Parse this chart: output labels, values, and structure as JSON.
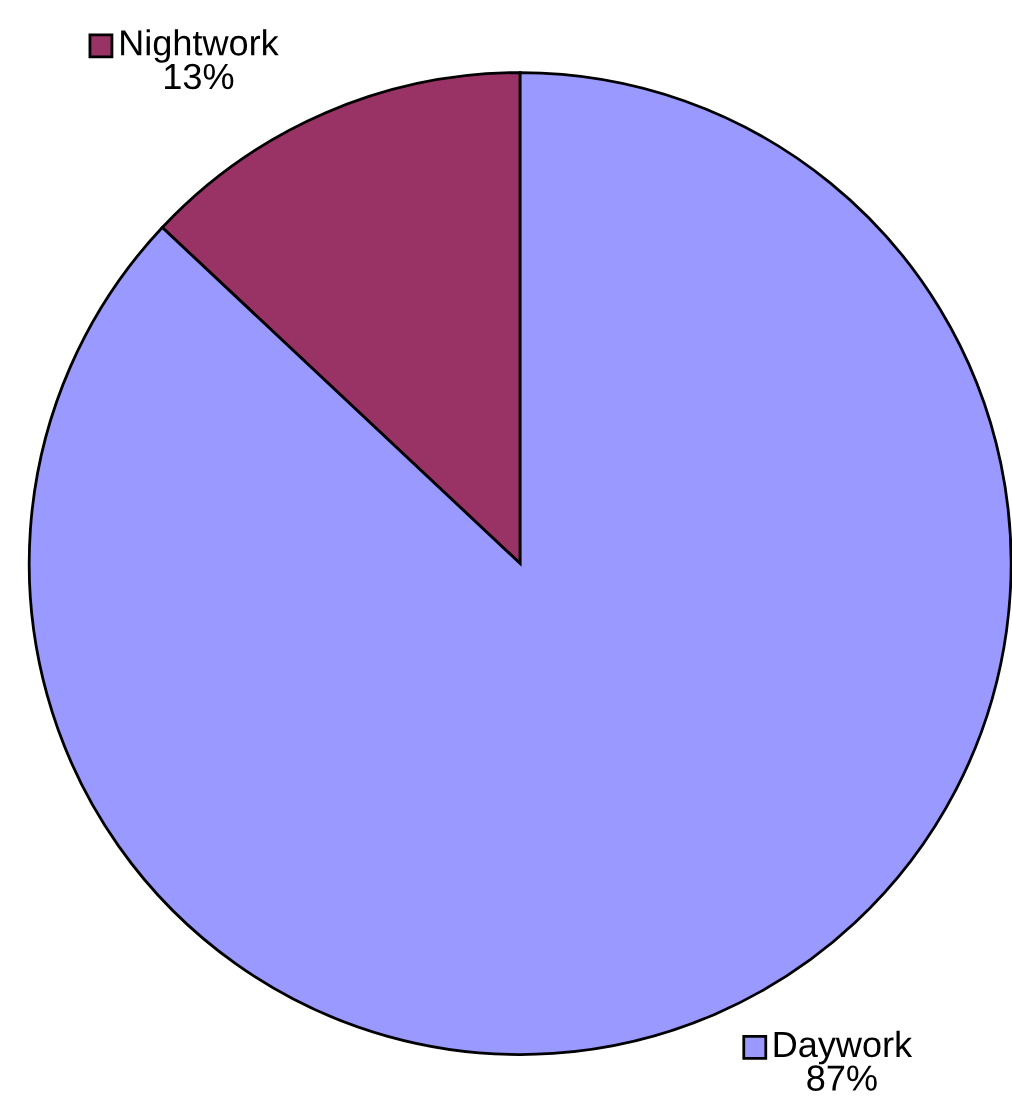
{
  "chart_data": {
    "type": "pie",
    "categories": [
      "Nightwork",
      "Daywork"
    ],
    "values": [
      13,
      87
    ],
    "value_labels": [
      "13%",
      "87%"
    ],
    "legend": "top left",
    "colors": [
      "#993366",
      "#9999ff"
    ]
  }
}
